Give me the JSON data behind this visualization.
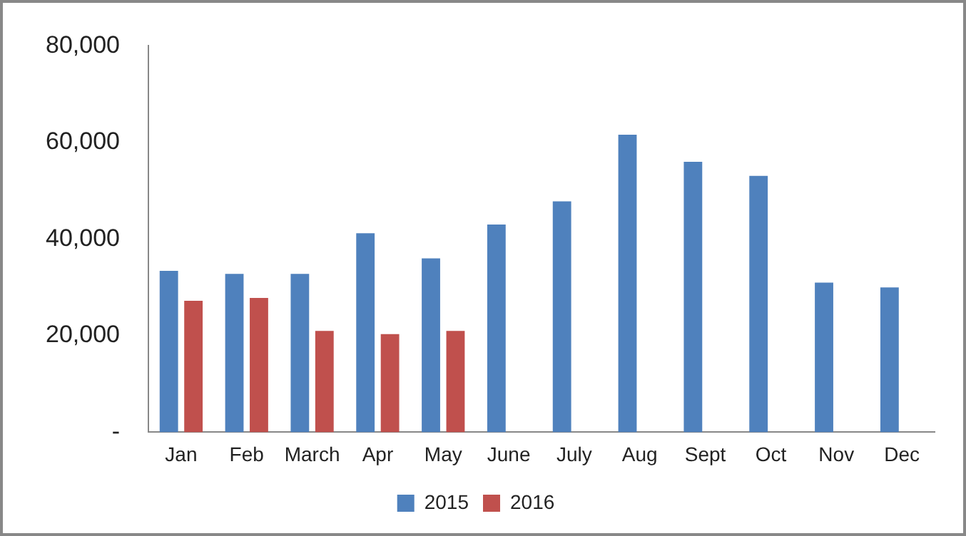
{
  "chart_data": {
    "type": "bar",
    "categories": [
      "Jan",
      "Feb",
      "March",
      "Apr",
      "May",
      "June",
      "July",
      "Aug",
      "Sept",
      "Oct",
      "Nov",
      "Dec"
    ],
    "series": [
      {
        "name": "2015",
        "color": "#4f81bd",
        "values": [
          33400,
          32800,
          32800,
          41200,
          36000,
          43000,
          47800,
          61600,
          56000,
          53100,
          31000,
          30000
        ]
      },
      {
        "name": "2016",
        "color": "#c0504d",
        "values": [
          27200,
          27800,
          21000,
          20300,
          21000,
          null,
          null,
          null,
          null,
          null,
          null,
          null
        ]
      }
    ],
    "ylim": [
      0,
      80000
    ],
    "yticks": [
      {
        "value": 0,
        "label": "-"
      },
      {
        "value": 20000,
        "label": "20,000"
      },
      {
        "value": 40000,
        "label": "40,000"
      },
      {
        "value": 60000,
        "label": "60,000"
      },
      {
        "value": 80000,
        "label": "80,000"
      }
    ],
    "grid": false,
    "legend": "bottom"
  }
}
